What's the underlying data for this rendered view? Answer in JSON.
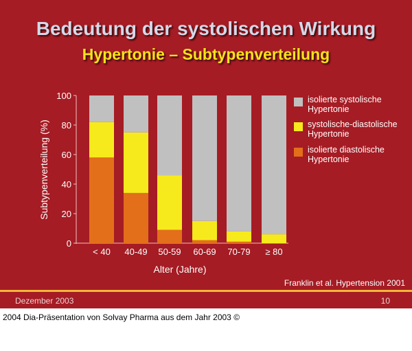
{
  "slide": {
    "title": "Bedeutung der systolischen Wirkung",
    "subtitle": "Hypertonie – Subtypenverteilung",
    "citation": "Franklin et al. Hypertension 2001",
    "date": "Dezember 2003",
    "page": "10"
  },
  "caption": "2004 Dia-Präsentation von Solvay Pharma aus dem Jahr 2003 ©",
  "chart_data": {
    "type": "bar",
    "stacked": true,
    "xlabel": "Alter (Jahre)",
    "ylabel": "Subtypenverteilung (%)",
    "ylim": [
      0,
      100
    ],
    "yticks": [
      0,
      20,
      40,
      60,
      80,
      100
    ],
    "categories": [
      "< 40",
      "40-49",
      "50-59",
      "60-69",
      "70-79",
      "≥ 80"
    ],
    "series": [
      {
        "name": "isolierte diastolische Hypertonie",
        "color": "#e36f1a",
        "values": [
          58,
          34,
          9,
          2,
          1,
          0
        ]
      },
      {
        "name": "systolische-diastolische Hypertonie",
        "color": "#f7ea1c",
        "values": [
          24,
          41,
          37,
          13,
          7,
          6
        ]
      },
      {
        "name": "isolierte systolische Hypertonie",
        "color": "#c0c0c0",
        "values": [
          18,
          25,
          54,
          85,
          92,
          94
        ]
      }
    ],
    "legend": {
      "placement": "right",
      "entries": [
        {
          "line1": "isolierte systolische",
          "line2": "Hypertonie",
          "color": "#c0c0c0"
        },
        {
          "line1": "systolische-diastolische",
          "line2": "Hypertonie",
          "color": "#f7ea1c"
        },
        {
          "line1": "isolierte diastolische",
          "line2": "Hypertonie",
          "color": "#e36f1a"
        }
      ]
    }
  }
}
